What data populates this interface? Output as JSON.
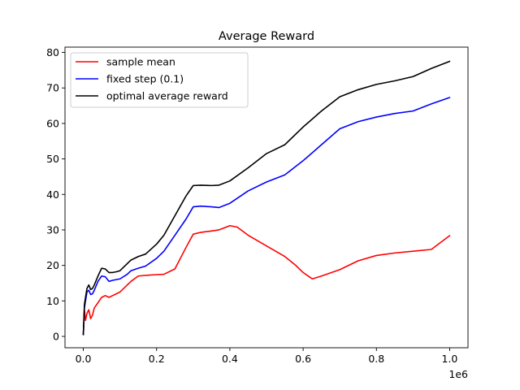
{
  "chart_data": {
    "type": "line",
    "title": "Average Reward",
    "xlabel": "",
    "ylabel": "",
    "x_offset_label": "1e6",
    "xlim": [
      -0.05,
      1.05
    ],
    "ylim": [
      -3.2,
      81.5
    ],
    "xticks": [
      0.0,
      0.2,
      0.4,
      0.6,
      0.8,
      1.0
    ],
    "xtick_labels": [
      "0.0",
      "0.2",
      "0.4",
      "0.6",
      "0.8",
      "1.0"
    ],
    "yticks": [
      0,
      10,
      20,
      30,
      40,
      50,
      60,
      70,
      80
    ],
    "ytick_labels": [
      "0",
      "10",
      "20",
      "30",
      "40",
      "50",
      "60",
      "70",
      "80"
    ],
    "grid": false,
    "legend_position": "upper-left",
    "series": [
      {
        "name": "sample mean",
        "color": "#ff0000",
        "x": [
          0.0,
          0.003,
          0.006,
          0.01,
          0.015,
          0.02,
          0.025,
          0.03,
          0.04,
          0.05,
          0.06,
          0.07,
          0.08,
          0.09,
          0.1,
          0.12,
          0.13,
          0.15,
          0.17,
          0.2,
          0.22,
          0.25,
          0.28,
          0.3,
          0.32,
          0.35,
          0.37,
          0.4,
          0.42,
          0.45,
          0.5,
          0.55,
          0.58,
          0.6,
          0.625,
          0.65,
          0.7,
          0.75,
          0.8,
          0.85,
          0.9,
          0.95,
          1.0
        ],
        "y": [
          0.5,
          7.5,
          4.5,
          6.5,
          7.5,
          5.0,
          6.0,
          8.0,
          9.5,
          11.0,
          11.5,
          11.0,
          11.5,
          12.0,
          12.5,
          14.5,
          15.5,
          17.0,
          17.2,
          17.4,
          17.5,
          19.0,
          25.0,
          28.8,
          29.3,
          29.7,
          30.0,
          31.2,
          30.8,
          28.5,
          25.5,
          22.5,
          20.0,
          18.0,
          16.2,
          17.0,
          18.8,
          21.3,
          22.8,
          23.5,
          24.0,
          24.5,
          28.4
        ]
      },
      {
        "name": "fixed step (0.1)",
        "color": "#0000ff",
        "x": [
          0.0,
          0.003,
          0.006,
          0.01,
          0.015,
          0.02,
          0.025,
          0.03,
          0.04,
          0.05,
          0.06,
          0.07,
          0.08,
          0.09,
          0.1,
          0.12,
          0.13,
          0.15,
          0.17,
          0.2,
          0.22,
          0.25,
          0.28,
          0.3,
          0.32,
          0.35,
          0.37,
          0.4,
          0.45,
          0.5,
          0.55,
          0.6,
          0.65,
          0.7,
          0.75,
          0.8,
          0.85,
          0.9,
          0.95,
          1.0
        ],
        "y": [
          0.5,
          8.0,
          10.0,
          12.5,
          13.0,
          11.8,
          12.0,
          13.0,
          15.5,
          17.0,
          16.8,
          15.5,
          15.8,
          16.0,
          16.2,
          17.5,
          18.5,
          19.2,
          19.8,
          22.0,
          24.0,
          28.5,
          33.0,
          36.5,
          36.7,
          36.5,
          36.3,
          37.5,
          41.0,
          43.5,
          45.5,
          49.5,
          54.0,
          58.5,
          60.5,
          61.8,
          62.8,
          63.5,
          65.5,
          67.3
        ]
      },
      {
        "name": "optimal average reward",
        "color": "#000000",
        "x": [
          0.0,
          0.003,
          0.006,
          0.01,
          0.015,
          0.02,
          0.025,
          0.03,
          0.04,
          0.05,
          0.06,
          0.07,
          0.08,
          0.09,
          0.1,
          0.12,
          0.13,
          0.15,
          0.17,
          0.2,
          0.22,
          0.25,
          0.28,
          0.3,
          0.32,
          0.35,
          0.37,
          0.4,
          0.45,
          0.5,
          0.55,
          0.6,
          0.65,
          0.7,
          0.75,
          0.8,
          0.85,
          0.9,
          0.95,
          1.0
        ],
        "y": [
          0.5,
          9.0,
          11.0,
          13.5,
          14.5,
          13.2,
          13.5,
          14.5,
          17.0,
          19.2,
          19.0,
          18.0,
          18.0,
          18.2,
          18.5,
          20.5,
          21.5,
          22.5,
          23.2,
          26.0,
          28.5,
          34.0,
          39.5,
          42.5,
          42.6,
          42.5,
          42.6,
          43.8,
          47.5,
          51.5,
          54.0,
          59.0,
          63.5,
          67.5,
          69.5,
          71.0,
          72.0,
          73.2,
          75.5,
          77.5
        ]
      }
    ]
  }
}
